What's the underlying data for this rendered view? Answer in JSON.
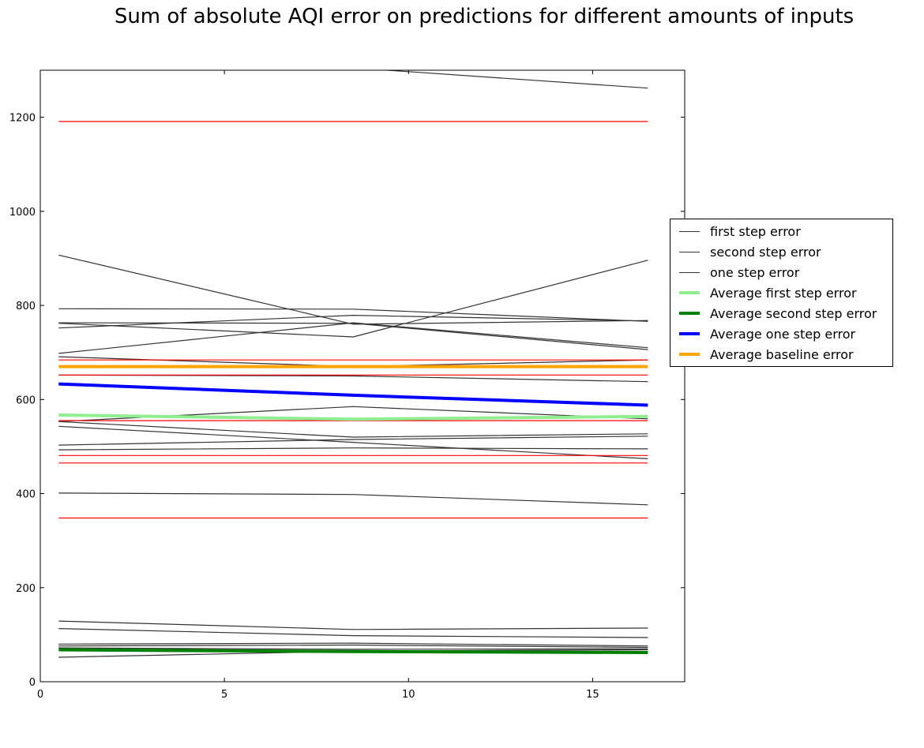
{
  "chart_data": {
    "type": "line",
    "title": "Sum of absolute AQI error on predictions for different amounts of inputs",
    "xlabel": "",
    "ylabel": "",
    "xlim": [
      0,
      17.5
    ],
    "ylim": [
      0,
      1300
    ],
    "x": [
      0.5,
      8.5,
      16.5
    ],
    "x_ticks": [
      0,
      5,
      10,
      15
    ],
    "y_ticks": [
      0,
      200,
      400,
      600,
      800,
      1000,
      1200
    ],
    "grid": false,
    "legend_position": "right",
    "line_series": [
      {
        "color": "#333333",
        "width": 1.2,
        "values": [
          1330,
          1305,
          1262
        ]
      },
      {
        "color": "#333333",
        "width": 1.2,
        "values": [
          907,
          760,
          768
        ]
      },
      {
        "color": "#333333",
        "width": 1.2,
        "values": [
          793,
          792,
          766
        ]
      },
      {
        "color": "#333333",
        "width": 1.2,
        "values": [
          762,
          733,
          896
        ]
      },
      {
        "color": "#333333",
        "width": 1.2,
        "values": [
          752,
          779,
          767
        ]
      },
      {
        "color": "#333333",
        "width": 1.2,
        "values": [
          763,
          762,
          706
        ]
      },
      {
        "color": "#333333",
        "width": 1.2,
        "values": [
          698,
          763,
          710
        ]
      },
      {
        "color": "#333333",
        "width": 1.2,
        "values": [
          691,
          670,
          684
        ]
      },
      {
        "color": "#333333",
        "width": 1.2,
        "values": [
          652,
          650,
          638
        ]
      },
      {
        "color": "#333333",
        "width": 1.2,
        "values": [
          553,
          585,
          559
        ]
      },
      {
        "color": "#333333",
        "width": 1.2,
        "values": [
          553,
          520,
          527
        ]
      },
      {
        "color": "#333333",
        "width": 1.2,
        "values": [
          543,
          509,
          474
        ]
      },
      {
        "color": "#333333",
        "width": 1.2,
        "values": [
          503,
          515,
          522
        ]
      },
      {
        "color": "#333333",
        "width": 1.2,
        "values": [
          493,
          497,
          495
        ]
      },
      {
        "color": "#333333",
        "width": 1.2,
        "values": [
          401,
          398,
          376
        ]
      },
      {
        "color": "#333333",
        "width": 1.2,
        "values": [
          129,
          111,
          114
        ]
      },
      {
        "color": "#333333",
        "width": 1.2,
        "values": [
          113,
          98,
          94
        ]
      },
      {
        "color": "#333333",
        "width": 1.2,
        "values": [
          80,
          82,
          76
        ]
      },
      {
        "color": "#333333",
        "width": 1.2,
        "values": [
          76,
          78,
          73
        ]
      },
      {
        "color": "#333333",
        "width": 1.2,
        "values": [
          72,
          69,
          70
        ]
      },
      {
        "color": "#333333",
        "width": 1.2,
        "values": [
          52,
          65,
          68
        ]
      }
    ],
    "baseline_series": [
      {
        "color": "#ff0000",
        "width": 1.2,
        "values": [
          1191,
          1191,
          1191
        ]
      },
      {
        "color": "#ff0000",
        "width": 1.2,
        "values": [
          684,
          684,
          684
        ]
      },
      {
        "color": "#ff0000",
        "width": 1.2,
        "values": [
          652,
          652,
          652
        ]
      },
      {
        "color": "#ff0000",
        "width": 1.2,
        "values": [
          555,
          555,
          555
        ]
      },
      {
        "color": "#ff0000",
        "width": 1.2,
        "values": [
          481,
          481,
          481
        ]
      },
      {
        "color": "#ff0000",
        "width": 1.2,
        "values": [
          465,
          465,
          465
        ]
      },
      {
        "color": "#ff0000",
        "width": 1.2,
        "values": [
          348,
          348,
          348
        ]
      }
    ],
    "average_series": [
      {
        "name": "Average first step error",
        "color": "#90ee90",
        "width": 4,
        "values": [
          567,
          558,
          564
        ]
      },
      {
        "name": "Average second step error",
        "color": "#008000",
        "width": 4,
        "values": [
          68,
          64,
          62
        ]
      },
      {
        "name": "Average one step error",
        "color": "#0000ff",
        "width": 4,
        "values": [
          633,
          609,
          588
        ]
      },
      {
        "name": "Average baseline error",
        "color": "#ffa500",
        "width": 4,
        "values": [
          670,
          670,
          670
        ]
      }
    ],
    "legend": [
      {
        "label": "first step error",
        "color": "#333333",
        "width": 1
      },
      {
        "label": "second step error",
        "color": "#333333",
        "width": 1
      },
      {
        "label": "one step error",
        "color": "#333333",
        "width": 1
      },
      {
        "label": "Average first step error",
        "color": "#90ee90",
        "width": 4
      },
      {
        "label": "Average second step error",
        "color": "#008000",
        "width": 4
      },
      {
        "label": "Average one step error",
        "color": "#0000ff",
        "width": 4
      },
      {
        "label": "Average baseline error",
        "color": "#ffa500",
        "width": 4
      }
    ]
  }
}
